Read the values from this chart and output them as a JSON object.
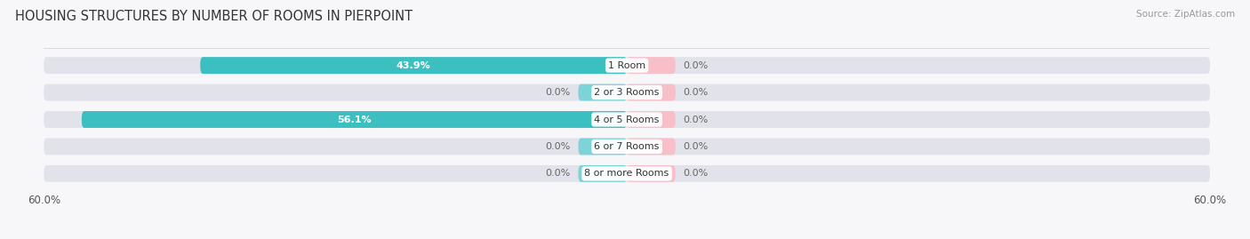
{
  "title": "HOUSING STRUCTURES BY NUMBER OF ROOMS IN PIERPOINT",
  "source": "Source: ZipAtlas.com",
  "categories": [
    "1 Room",
    "2 or 3 Rooms",
    "4 or 5 Rooms",
    "6 or 7 Rooms",
    "8 or more Rooms"
  ],
  "owner_values": [
    43.9,
    0.0,
    56.1,
    0.0,
    0.0
  ],
  "renter_values": [
    0.0,
    0.0,
    0.0,
    0.0,
    0.0
  ],
  "owner_color": "#3BBFC0",
  "renter_color": "#F4A0B5",
  "owner_stub_color": "#7DD4D8",
  "renter_stub_color": "#F8BFC9",
  "axis_limit": 60.0,
  "min_stub": 5.0,
  "bg_color": "#f0f0f5",
  "bar_bg_color": "#e2e2ea",
  "bar_height": 0.62,
  "row_bg_color": "#f7f7fa",
  "title_fontsize": 10.5,
  "label_fontsize": 8.0,
  "cat_fontsize": 8.0,
  "tick_fontsize": 8.5,
  "source_fontsize": 7.5
}
